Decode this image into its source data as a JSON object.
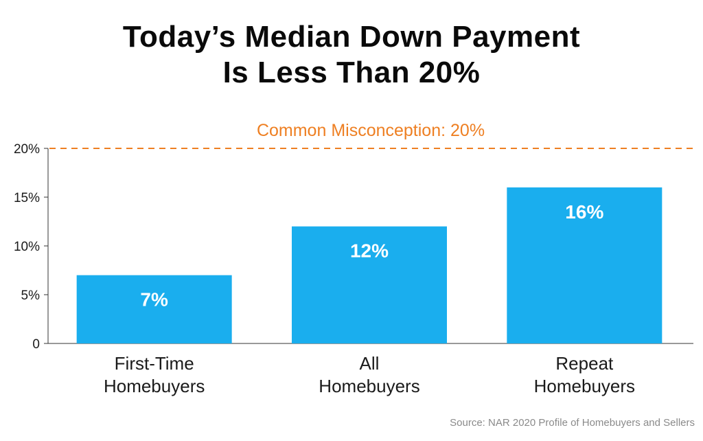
{
  "title": {
    "line1": "Today’s Median Down Payment",
    "line2": "Is Less Than 20%"
  },
  "source": "Source: NAR 2020 Profile of Homebuyers and Sellers",
  "colors": {
    "bar": "#1aaeee",
    "reference": "#ee7f22",
    "axis": "#333333"
  },
  "chart_data": {
    "type": "bar",
    "categories": [
      [
        "First-Time",
        "Homebuyers"
      ],
      [
        "All",
        "Homebuyers"
      ],
      [
        "Repeat",
        "Homebuyers"
      ]
    ],
    "values": [
      7,
      12,
      16
    ],
    "value_labels": [
      "7%",
      "12%",
      "16%"
    ],
    "ylim": [
      0,
      20
    ],
    "yticks": [
      0,
      5,
      10,
      15,
      20
    ],
    "ytick_labels": [
      "0",
      "5%",
      "10%",
      "15%",
      "20%"
    ],
    "grid": false,
    "reference_line": {
      "value": 20,
      "label": "Common Misconception: 20%",
      "style": "dashed"
    }
  }
}
